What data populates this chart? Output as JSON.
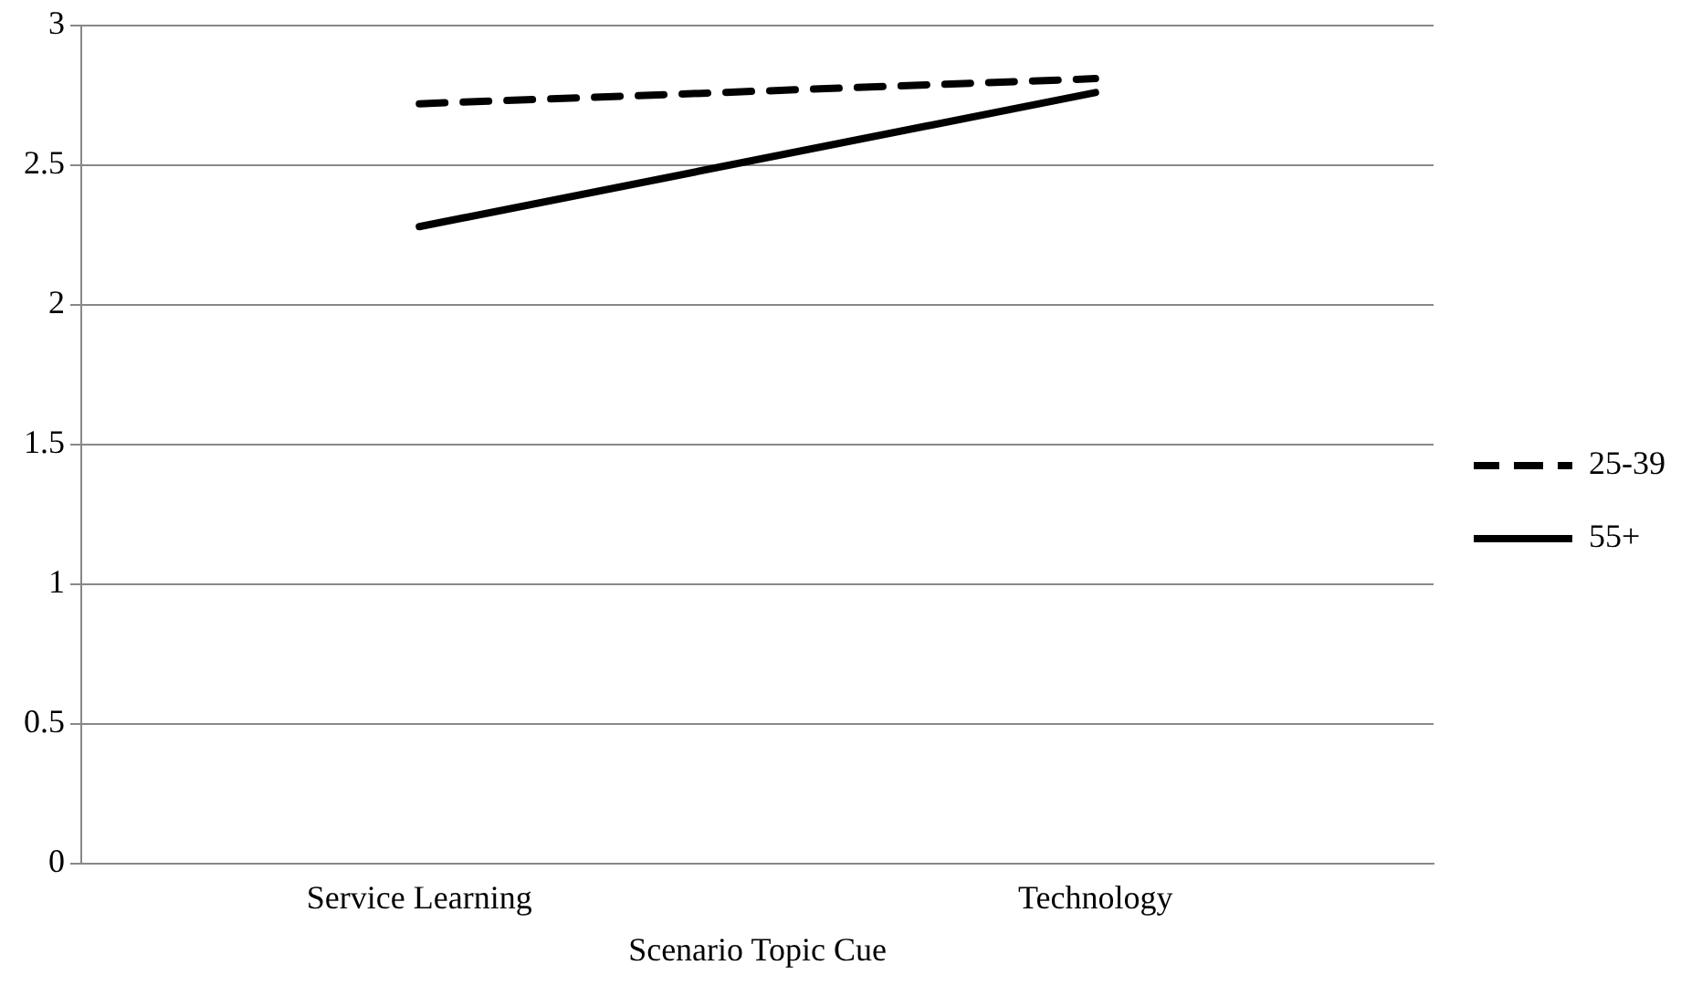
{
  "chart_data": {
    "type": "line",
    "xlabel": "Scenario Topic Cue",
    "categories": [
      "Service Learning",
      "Technology"
    ],
    "series": [
      {
        "name": "25-39",
        "color": "#000000",
        "line_style": "dashed",
        "values": [
          2.72,
          2.81
        ]
      },
      {
        "name": "55+",
        "color": "#000000",
        "line_style": "solid",
        "values": [
          2.28,
          2.76
        ]
      }
    ],
    "ylim": [
      0,
      3
    ],
    "yticks": [
      0,
      0.5,
      1,
      1.5,
      2,
      2.5,
      3
    ],
    "grid": "y",
    "legend": "right",
    "marker": "none"
  }
}
